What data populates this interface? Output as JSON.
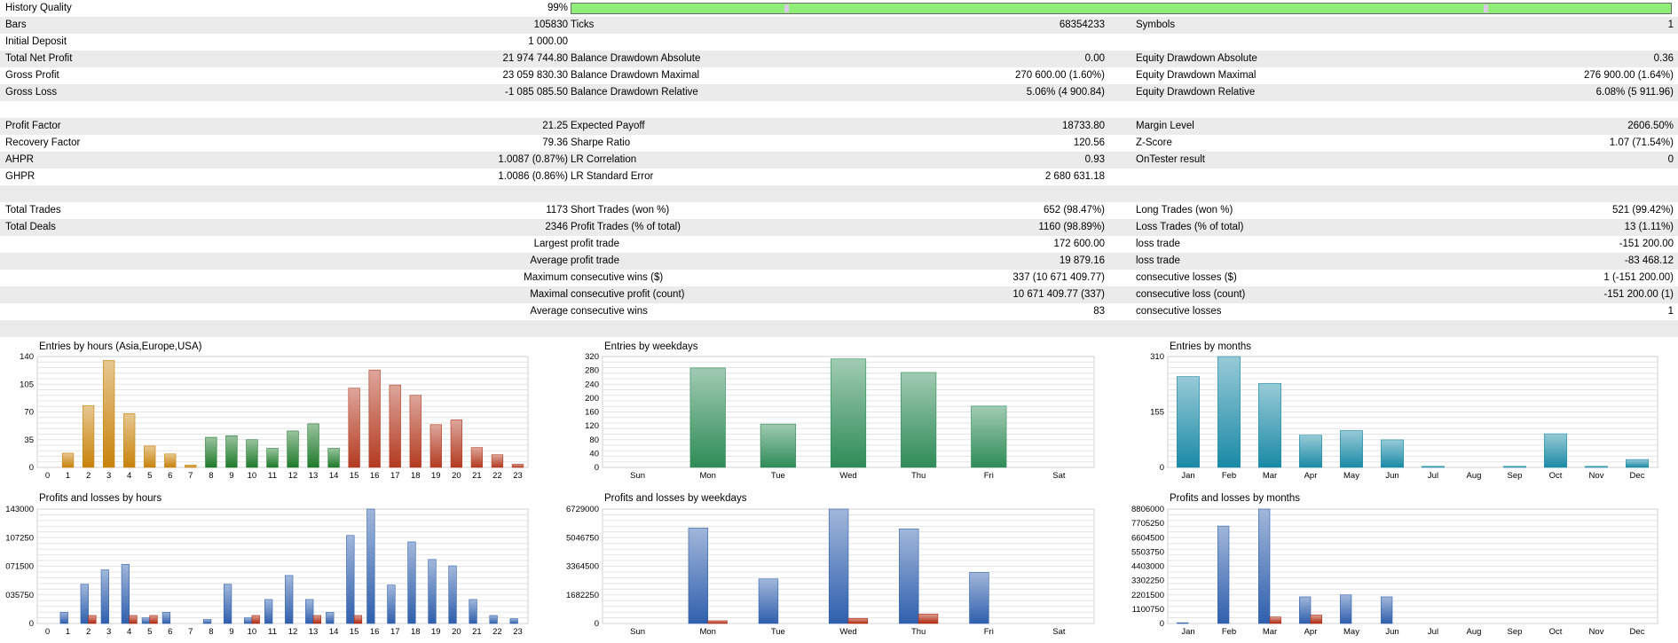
{
  "summary": {
    "history_quality": {
      "label": "History Quality",
      "value": "99%",
      "fraction": 0.99
    },
    "bars": {
      "label": "Bars",
      "value": "105830"
    },
    "ticks": {
      "label": "Ticks",
      "value": "68354233"
    },
    "symbols": {
      "label": "Symbols",
      "value": "1"
    },
    "initial_deposit": {
      "label": "Initial Deposit",
      "value": "1 000.00"
    },
    "total_net_profit": {
      "label": "Total Net Profit",
      "value": "21 974 744.80"
    },
    "balance_dd_abs": {
      "label": "Balance Drawdown Absolute",
      "value": "0.00"
    },
    "equity_dd_abs": {
      "label": "Equity Drawdown Absolute",
      "value": "0.36"
    },
    "gross_profit": {
      "label": "Gross Profit",
      "value": "23 059 830.30"
    },
    "balance_dd_max": {
      "label": "Balance Drawdown Maximal",
      "value": "270 600.00 (1.60%)"
    },
    "equity_dd_max": {
      "label": "Equity Drawdown Maximal",
      "value": "276 900.00 (1.64%)"
    },
    "gross_loss": {
      "label": "Gross Loss",
      "value": "-1 085 085.50"
    },
    "balance_dd_rel": {
      "label": "Balance Drawdown Relative",
      "value": "5.06% (4 900.84)"
    },
    "equity_dd_rel": {
      "label": "Equity Drawdown Relative",
      "value": "6.08% (5 911.96)"
    },
    "profit_factor": {
      "label": "Profit Factor",
      "value": "21.25"
    },
    "expected_payoff": {
      "label": "Expected Payoff",
      "value": "18733.80"
    },
    "margin_level": {
      "label": "Margin Level",
      "value": "2606.50%"
    },
    "recovery_factor": {
      "label": "Recovery Factor",
      "value": "79.36"
    },
    "sharpe_ratio": {
      "label": "Sharpe Ratio",
      "value": "120.56"
    },
    "z_score": {
      "label": "Z-Score",
      "value": "1.07 (71.54%)"
    },
    "ahpr": {
      "label": "AHPR",
      "value": "1.0087 (0.87%)"
    },
    "lr_correlation": {
      "label": "LR Correlation",
      "value": "0.93"
    },
    "ontester_result": {
      "label": "OnTester result",
      "value": "0"
    },
    "ghpr": {
      "label": "GHPR",
      "value": "1.0086 (0.86%)"
    },
    "lr_std_error": {
      "label": "LR Standard Error",
      "value": "2 680 631.18"
    },
    "total_trades": {
      "label": "Total Trades",
      "value": "1173"
    },
    "short_trades": {
      "label": "Short Trades (won %)",
      "value": "652 (98.47%)"
    },
    "long_trades": {
      "label": "Long Trades (won %)",
      "value": "521 (99.42%)"
    },
    "total_deals": {
      "label": "Total Deals",
      "value": "2346"
    },
    "profit_trades": {
      "label": "Profit Trades (% of total)",
      "value": "1160 (98.89%)"
    },
    "loss_trades": {
      "label": "Loss Trades (% of total)",
      "value": "13 (1.11%)"
    },
    "largest": {
      "label": "Largest",
      "profit_label": "profit trade",
      "profit_value": "172 600.00",
      "loss_label": "loss trade",
      "loss_value": "-151 200.00"
    },
    "average": {
      "label": "Average",
      "profit_label": "profit trade",
      "profit_value": "19 879.16",
      "loss_label": "loss trade",
      "loss_value": "-83 468.12"
    },
    "maximum": {
      "label": "Maximum",
      "wins_label": "consecutive wins ($)",
      "wins_value": "337 (10 671 409.77)",
      "losses_label": "consecutive losses ($)",
      "losses_value": "1 (-151 200.00)"
    },
    "maximal": {
      "label": "Maximal",
      "wins_label": "consecutive profit (count)",
      "wins_value": "10 671 409.77 (337)",
      "losses_label": "consecutive loss (count)",
      "losses_value": "-151 200.00 (1)"
    },
    "average_consec": {
      "label": "Average",
      "wins_label": "consecutive wins",
      "wins_value": "83",
      "losses_label": "consecutive losses",
      "losses_value": "1"
    }
  },
  "chart_data": [
    {
      "id": "entries_hours",
      "type": "bar",
      "title": "Entries by hours (Asia,Europe,USA)",
      "categories": [
        "0",
        "1",
        "2",
        "3",
        "4",
        "5",
        "6",
        "7",
        "8",
        "9",
        "10",
        "11",
        "12",
        "13",
        "14",
        "15",
        "16",
        "17",
        "18",
        "19",
        "20",
        "21",
        "22",
        "23"
      ],
      "values": [
        0,
        18,
        78,
        135,
        68,
        27,
        17,
        3,
        38,
        40,
        35,
        24,
        46,
        55,
        24,
        100,
        123,
        104,
        91,
        54,
        60,
        25,
        16,
        4
      ],
      "yticks": [
        "0",
        "35",
        "70",
        "105",
        "140"
      ],
      "ylim": [
        0,
        140
      ],
      "colors": [
        "#c8820a",
        "#c8820a",
        "#c8820a",
        "#c8820a",
        "#c8820a",
        "#c8820a",
        "#c8820a",
        "#c8820a",
        "#1e7a2a",
        "#1e7a2a",
        "#1e7a2a",
        "#1e7a2a",
        "#1e7a2a",
        "#1e7a2a",
        "#1e7a2a",
        "#b33a20",
        "#b33a20",
        "#b33a20",
        "#b33a20",
        "#b33a20",
        "#b33a20",
        "#b33a20",
        "#b33a20",
        "#b33a20"
      ]
    },
    {
      "id": "entries_weekdays",
      "type": "bar",
      "title": "Entries by weekdays",
      "categories": [
        "Sun",
        "Mon",
        "Tue",
        "Wed",
        "Thu",
        "Fri",
        "Sat"
      ],
      "values": [
        0,
        287,
        125,
        313,
        274,
        177,
        0
      ],
      "yticks": [
        "0",
        "40",
        "80",
        "120",
        "160",
        "200",
        "240",
        "280",
        "320"
      ],
      "ylim": [
        0,
        320
      ],
      "colors": [
        "#2e8b57"
      ]
    },
    {
      "id": "entries_months",
      "type": "bar",
      "title": "Entries by months",
      "categories": [
        "Jan",
        "Feb",
        "Mar",
        "Apr",
        "May",
        "Jun",
        "Jul",
        "Aug",
        "Sep",
        "Oct",
        "Nov",
        "Dec"
      ],
      "values": [
        254,
        310,
        235,
        90,
        103,
        77,
        3,
        0,
        3,
        94,
        3,
        22
      ],
      "yticks": [
        "0",
        "155",
        "310"
      ],
      "ylim": [
        0,
        310
      ],
      "colors": [
        "#1a8aa6"
      ]
    },
    {
      "id": "pl_hours",
      "type": "bar",
      "title": "Profits and losses by hours",
      "categories": [
        "0",
        "1",
        "2",
        "3",
        "4",
        "5",
        "6",
        "7",
        "8",
        "9",
        "10",
        "11",
        "12",
        "13",
        "14",
        "15",
        "16",
        "17",
        "18",
        "19",
        "20",
        "21",
        "22",
        "23"
      ],
      "series": [
        {
          "values": [
            0,
            14000,
            49000,
            67000,
            74000,
            7000,
            14000,
            0,
            5000,
            49000,
            7000,
            30000,
            60000,
            30000,
            14000,
            110000,
            143000,
            48000,
            102000,
            80000,
            72000,
            30000,
            10000,
            6000
          ]
        },
        {
          "values": [
            0,
            0,
            10000,
            0,
            10000,
            10000,
            0,
            0,
            0,
            0,
            10000,
            0,
            0,
            10000,
            0,
            10000,
            0,
            0,
            0,
            0,
            0,
            0,
            0,
            0
          ]
        }
      ],
      "yticks": [
        "0",
        "035750",
        "071500",
        "107250",
        "143000"
      ],
      "ylim": [
        0,
        143000
      ],
      "colors": [
        "#2f5fad",
        "#b02a10"
      ]
    },
    {
      "id": "pl_weekdays",
      "type": "bar",
      "title": "Profits and losses by weekdays",
      "categories": [
        "Sun",
        "Mon",
        "Tue",
        "Wed",
        "Thu",
        "Fri",
        "Sat"
      ],
      "series": [
        {
          "values": [
            0,
            5620000,
            2620000,
            6729000,
            5560000,
            3000000,
            0
          ]
        },
        {
          "values": [
            0,
            160000,
            0,
            300000,
            560000,
            0,
            0
          ]
        }
      ],
      "yticks": [
        "0",
        "1682250",
        "3364500",
        "5046750",
        "6729000"
      ],
      "ylim": [
        0,
        6729000
      ],
      "colors": [
        "#2f5fad",
        "#b02a10"
      ]
    },
    {
      "id": "pl_months",
      "type": "bar",
      "title": "Profits and losses by months",
      "categories": [
        "Jan",
        "Feb",
        "Mar",
        "Apr",
        "May",
        "Jun",
        "Jul",
        "Aug",
        "Sep",
        "Oct",
        "Nov",
        "Dec"
      ],
      "series": [
        {
          "values": [
            60000,
            7500000,
            8806000,
            2050000,
            2200000,
            2050000,
            0,
            0,
            0,
            0,
            0,
            0
          ]
        },
        {
          "values": [
            0,
            0,
            500000,
            650000,
            0,
            0,
            0,
            0,
            0,
            0,
            0,
            0
          ]
        }
      ],
      "yticks": [
        "0",
        "1100750",
        "2201500",
        "3302250",
        "4403000",
        "5503750",
        "6604500",
        "7705250",
        "8806000"
      ],
      "ylim": [
        0,
        8806000
      ],
      "colors": [
        "#2f5fad",
        "#b02a10"
      ]
    }
  ]
}
